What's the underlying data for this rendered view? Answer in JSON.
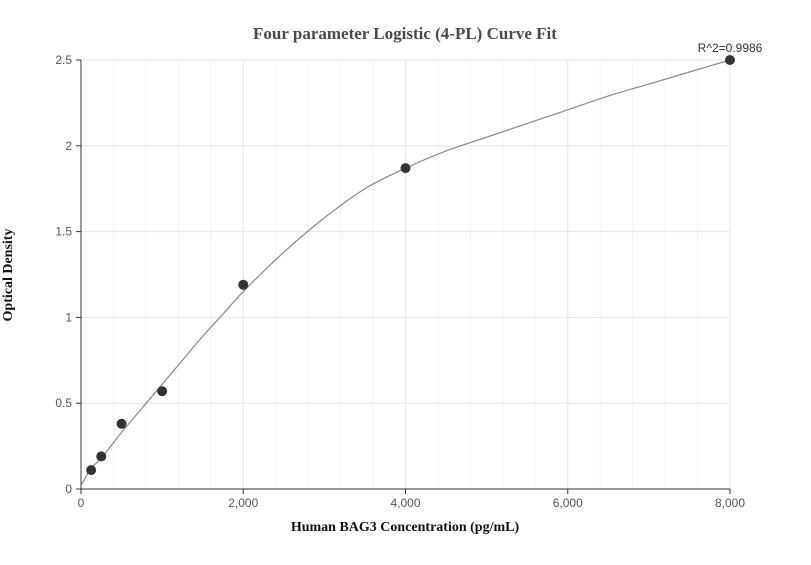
{
  "colors": {
    "curve": "#888888",
    "point": "#333333",
    "grid_major": "#e6e6e6",
    "grid_minor": "#f3f3f3",
    "axis": "#333333",
    "background": "#ffffff"
  },
  "chart_data": {
    "type": "scatter",
    "title": "Four parameter Logistic (4-PL) Curve Fit",
    "xlabel": "Human BAG3 Concentration (pg/mL)",
    "ylabel": "Optical Density",
    "xlim": [
      0,
      8000
    ],
    "ylim": [
      0,
      2.5
    ],
    "x_ticks": [
      0,
      2000,
      4000,
      6000,
      8000
    ],
    "x_tick_labels": [
      "0",
      "2,000",
      "4,000",
      "6,000",
      "8,000"
    ],
    "y_ticks": [
      0,
      0.5,
      1,
      1.5,
      2,
      2.5
    ],
    "y_tick_labels": [
      "0",
      "0.5",
      "1",
      "1.5",
      "2",
      "2.5"
    ],
    "grid": true,
    "annotation": "R^2=0.9986",
    "series": [
      {
        "type": "scatter",
        "points": [
          {
            "x": 125,
            "y": 0.11
          },
          {
            "x": 250,
            "y": 0.19
          },
          {
            "x": 500,
            "y": 0.38
          },
          {
            "x": 1000,
            "y": 0.57
          },
          {
            "x": 2000,
            "y": 1.19
          },
          {
            "x": 4000,
            "y": 1.87
          },
          {
            "x": 8000,
            "y": 2.5
          }
        ]
      },
      {
        "type": "line",
        "curve": [
          {
            "x": 0,
            "y": 0.02
          },
          {
            "x": 125,
            "y": 0.12
          },
          {
            "x": 250,
            "y": 0.18
          },
          {
            "x": 500,
            "y": 0.33
          },
          {
            "x": 750,
            "y": 0.47
          },
          {
            "x": 1000,
            "y": 0.61
          },
          {
            "x": 1250,
            "y": 0.75
          },
          {
            "x": 1500,
            "y": 0.89
          },
          {
            "x": 1750,
            "y": 1.02
          },
          {
            "x": 2000,
            "y": 1.15
          },
          {
            "x": 2500,
            "y": 1.38
          },
          {
            "x": 3000,
            "y": 1.58
          },
          {
            "x": 3500,
            "y": 1.75
          },
          {
            "x": 4000,
            "y": 1.87
          },
          {
            "x": 4500,
            "y": 1.97
          },
          {
            "x": 5000,
            "y": 2.05
          },
          {
            "x": 5500,
            "y": 2.13
          },
          {
            "x": 6000,
            "y": 2.21
          },
          {
            "x": 6500,
            "y": 2.29
          },
          {
            "x": 7000,
            "y": 2.36
          },
          {
            "x": 7500,
            "y": 2.43
          },
          {
            "x": 8000,
            "y": 2.5
          }
        ]
      }
    ]
  }
}
